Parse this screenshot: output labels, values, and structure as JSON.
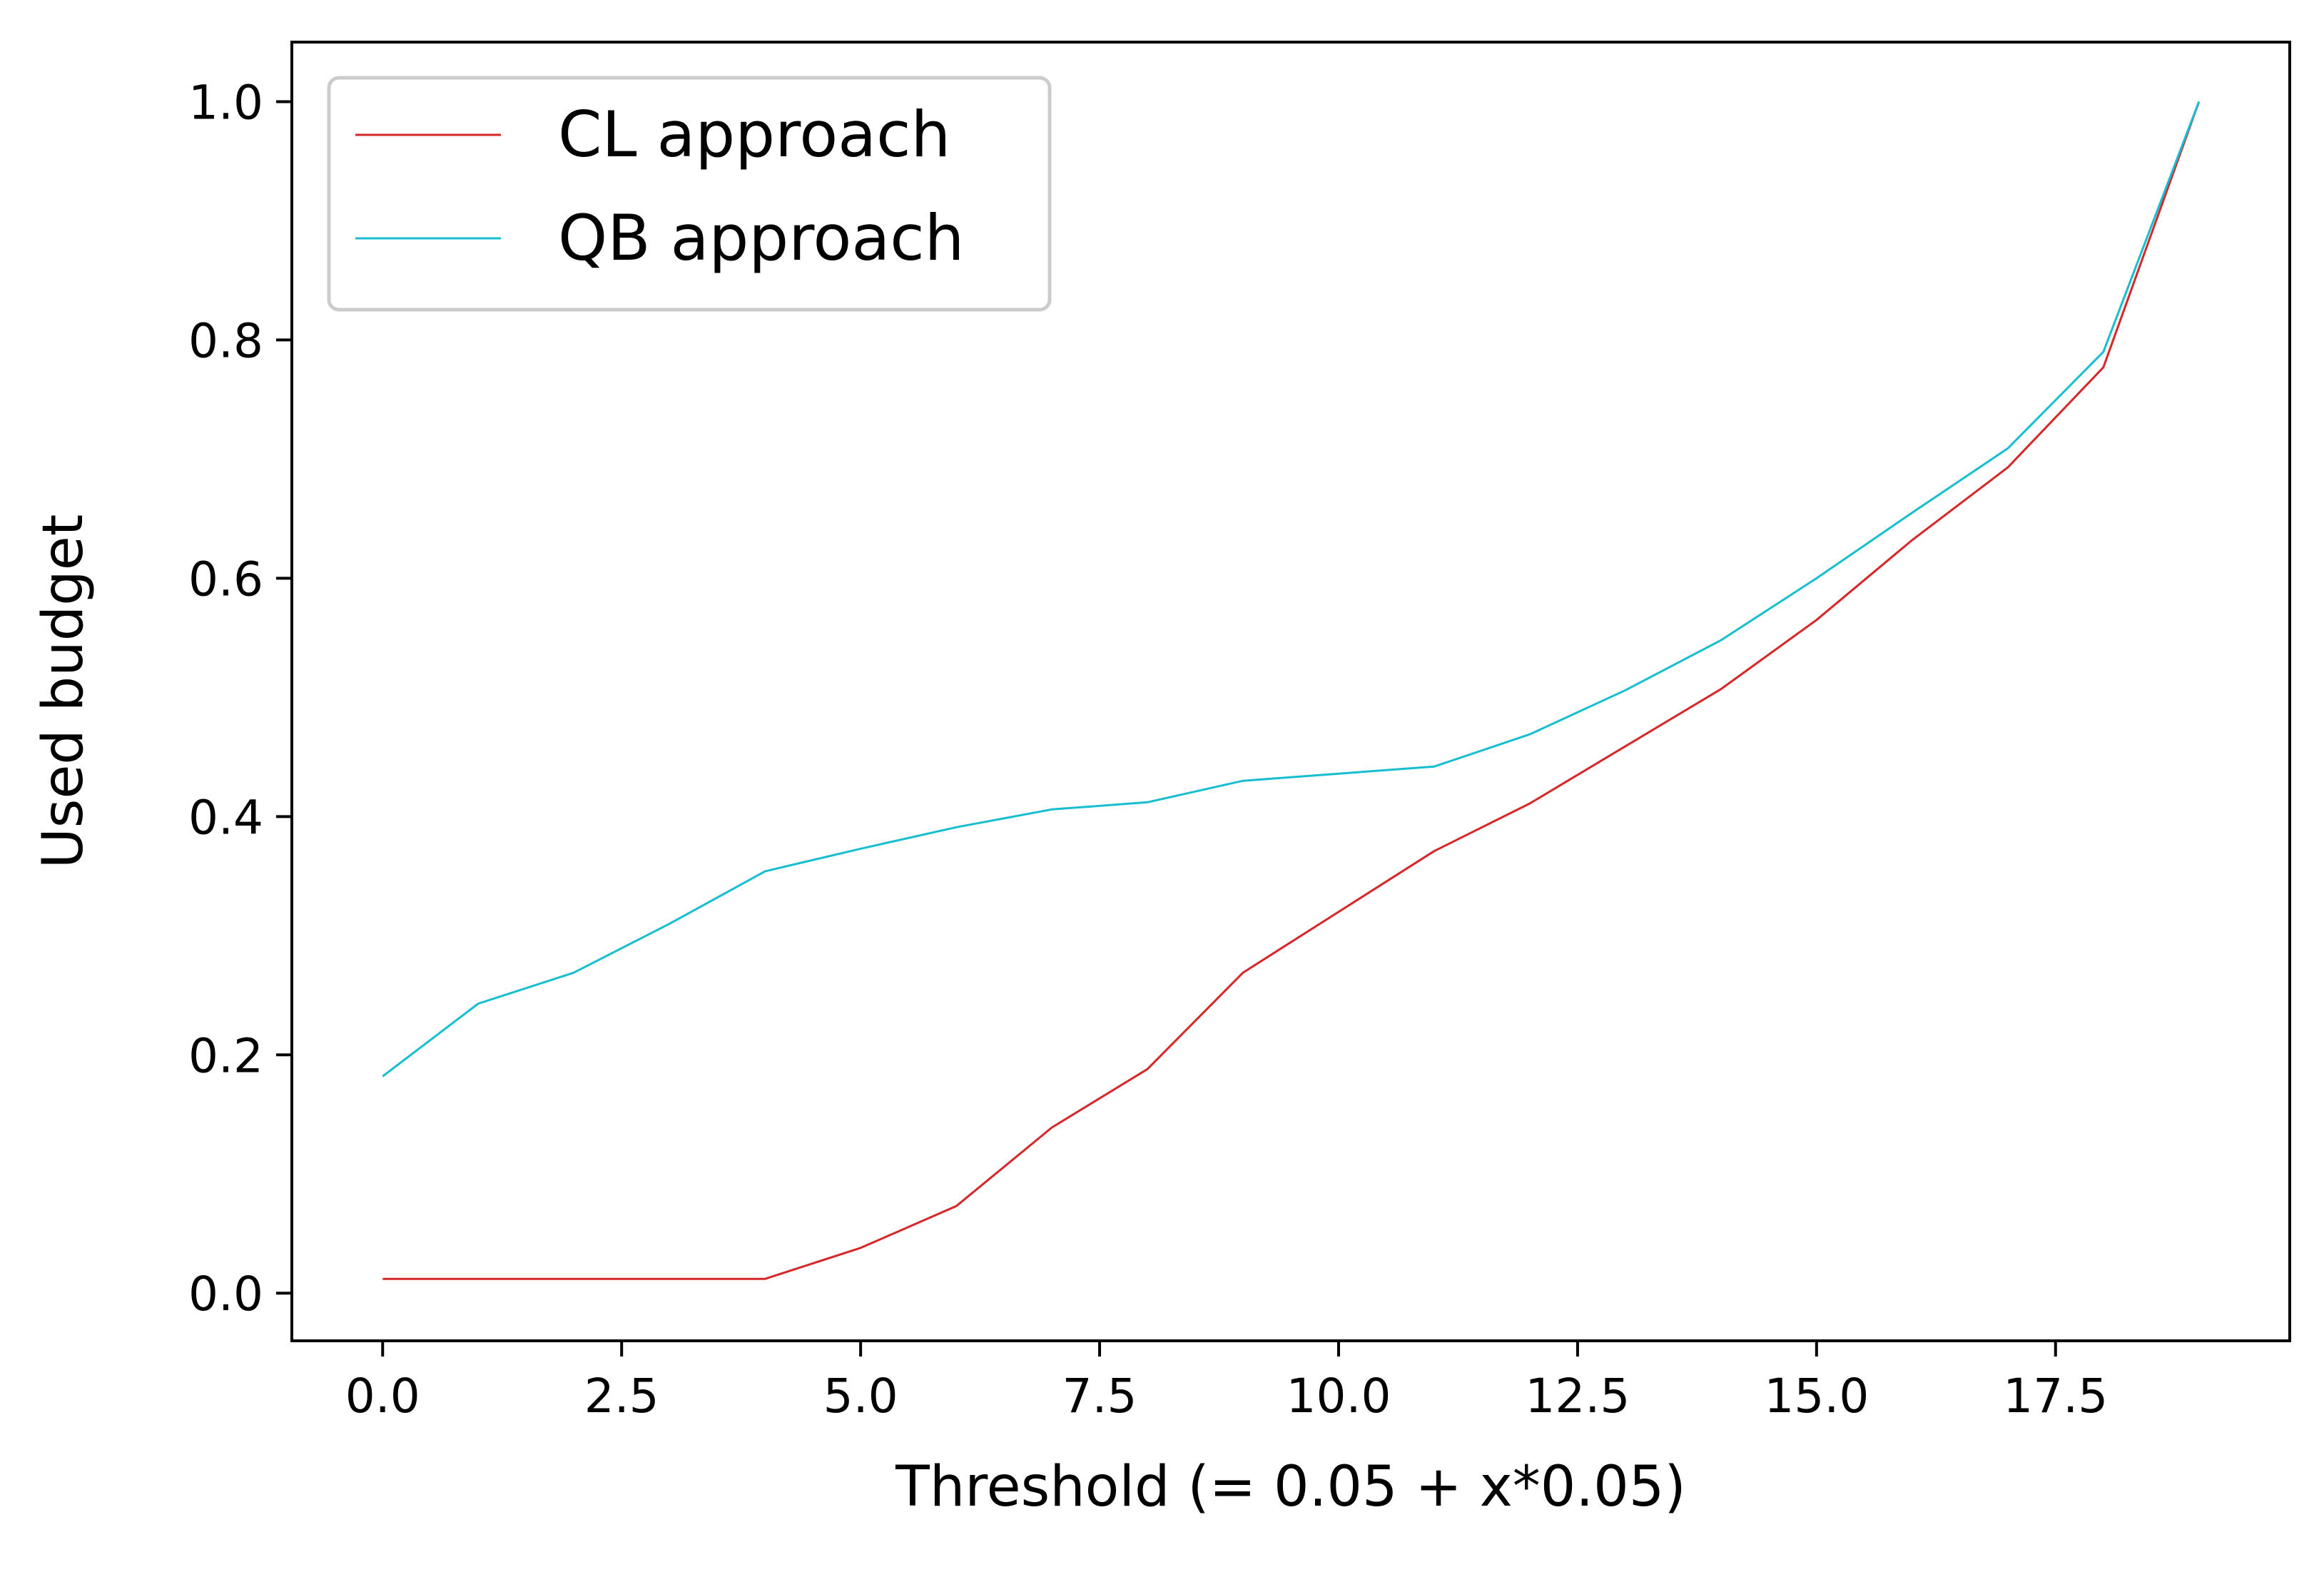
{
  "chart_data": {
    "type": "line",
    "title": "",
    "xlabel": "Threshold (= 0.05 + x*0.05)",
    "ylabel": "Used budget",
    "xlim": [
      -0.95,
      19.95
    ],
    "ylim": [
      -0.04,
      1.05
    ],
    "xticks": [
      0.0,
      2.5,
      5.0,
      7.5,
      10.0,
      12.5,
      15.0,
      17.5
    ],
    "xtick_labels": [
      "0.0",
      "2.5",
      "5.0",
      "7.5",
      "10.0",
      "12.5",
      "15.0",
      "17.5"
    ],
    "yticks": [
      0.0,
      0.2,
      0.4,
      0.6,
      0.8,
      1.0
    ],
    "ytick_labels": [
      "0.0",
      "0.2",
      "0.4",
      "0.6",
      "0.8",
      "1.0"
    ],
    "grid": false,
    "legend_position": "top-left",
    "x": [
      0,
      1,
      2,
      3,
      4,
      5,
      6,
      7,
      8,
      9,
      10,
      11,
      12,
      13,
      14,
      15,
      16,
      17,
      18,
      19
    ],
    "series": [
      {
        "name": "CL approach",
        "color": "#d62728",
        "values": [
          0.012,
          0.012,
          0.012,
          0.012,
          0.012,
          0.038,
          0.073,
          0.139,
          0.188,
          0.269,
          0.32,
          0.371,
          0.411,
          0.459,
          0.507,
          0.565,
          0.632,
          0.693,
          0.777,
          1.0
        ]
      },
      {
        "name": "QB approach",
        "color": "#17becf",
        "values": [
          0.182,
          0.243,
          0.269,
          0.31,
          0.354,
          0.373,
          0.391,
          0.406,
          0.412,
          0.43,
          0.436,
          0.442,
          0.469,
          0.506,
          0.548,
          0.6,
          0.655,
          0.709,
          0.79,
          1.0
        ]
      }
    ]
  }
}
